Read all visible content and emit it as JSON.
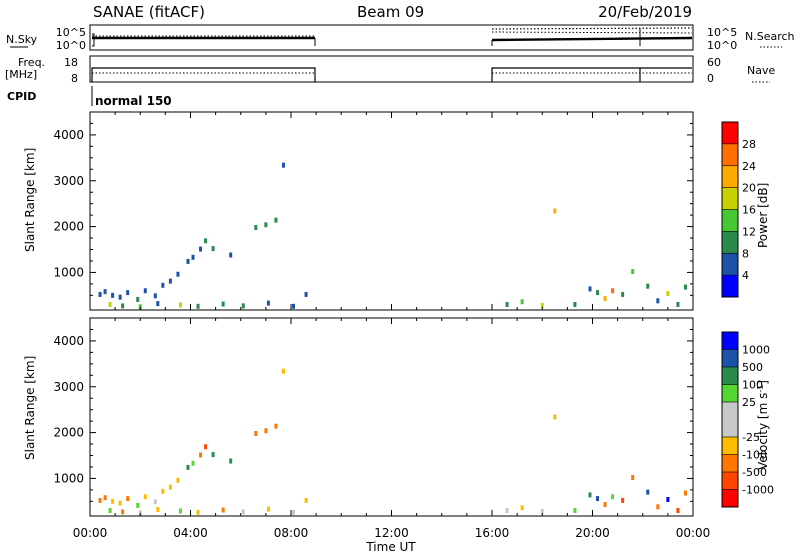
{
  "header": {
    "station": "SANAE (fitACF)",
    "beam": "Beam 09",
    "date": "20/Feb/2019"
  },
  "top_panels": {
    "nsky_label": "N.Sky",
    "nsky_ticks": [
      "10^5",
      "10^0"
    ],
    "nsearch_label": "N.Search",
    "nsearch_ticks": [
      "10^5",
      "10^0"
    ],
    "freq_label": "Freq.",
    "freq_unit": "[MHz]",
    "freq_ticks": [
      "18",
      "8"
    ],
    "nave_label": "Nave",
    "nave_ticks": [
      "60",
      "0"
    ],
    "cpid_label": "CPID",
    "cpid_text": "normal 150",
    "active_intervals_hours": [
      [
        0,
        9
      ],
      [
        16,
        24
      ]
    ],
    "cpid_change_hours": [
      0,
      9,
      16,
      21.8
    ]
  },
  "colors": {
    "power": [
      "#0000ff",
      "#1b53a9",
      "#2a8a4e",
      "#46c832",
      "#c8d200",
      "#ffaa00",
      "#ff7000",
      "#ff0000"
    ],
    "velocity": [
      "#ff0000",
      "#ff4400",
      "#ff7700",
      "#ffbb00",
      "#c8c8c8",
      "#c8c8c8",
      "#55d633",
      "#2a8a4e",
      "#1b53a9",
      "#0000ff"
    ]
  },
  "chart_data": [
    {
      "type": "scatter",
      "title": "",
      "xlabel": "Time UT",
      "ylabel": "Slant Range [km]",
      "xlim": [
        0,
        24
      ],
      "ylim": [
        180,
        4500
      ],
      "x_ticks": [
        "00:00",
        "04:00",
        "08:00",
        "12:00",
        "16:00",
        "20:00",
        "00:00"
      ],
      "y_ticks": [
        "1000",
        "2000",
        "3000",
        "4000"
      ],
      "colorbar": {
        "label": "Power [dB]",
        "ticks": [
          "4",
          "8",
          "12",
          "16",
          "20",
          "24",
          "28"
        ],
        "range": [
          0,
          32
        ]
      },
      "series": [
        {
          "points": [
            [
              0.4,
              520,
              6
            ],
            [
              0.6,
              580,
              6
            ],
            [
              0.9,
              500,
              5
            ],
            [
              1.2,
              460,
              7
            ],
            [
              1.5,
              560,
              6
            ],
            [
              1.9,
              410,
              9
            ],
            [
              2.2,
              600,
              7
            ],
            [
              2.6,
              490,
              5
            ],
            [
              2.9,
              720,
              6
            ],
            [
              3.2,
              810,
              7
            ],
            [
              3.5,
              960,
              5
            ],
            [
              3.9,
              1240,
              6
            ],
            [
              4.1,
              1330,
              5
            ],
            [
              4.4,
              1510,
              6
            ],
            [
              4.6,
              1690,
              11
            ],
            [
              4.9,
              1520,
              10
            ],
            [
              5.6,
              1380,
              6
            ],
            [
              6.6,
              1980,
              9
            ],
            [
              7.0,
              2040,
              10
            ],
            [
              7.4,
              2140,
              11
            ],
            [
              7.7,
              3340,
              6
            ],
            [
              0.8,
              300,
              19
            ],
            [
              1.3,
              270,
              9
            ],
            [
              2.0,
              250,
              12
            ],
            [
              2.7,
              320,
              6
            ],
            [
              3.6,
              290,
              17
            ],
            [
              4.3,
              260,
              8
            ],
            [
              5.3,
              310,
              10
            ],
            [
              6.1,
              270,
              9
            ],
            [
              7.1,
              330,
              6
            ],
            [
              8.1,
              260,
              7
            ],
            [
              8.6,
              520,
              5
            ],
            [
              16.6,
              300,
              10
            ],
            [
              17.2,
              360,
              14
            ],
            [
              18.0,
              280,
              19
            ],
            [
              18.5,
              2340,
              21
            ],
            [
              19.3,
              300,
              9
            ],
            [
              19.9,
              640,
              7
            ],
            [
              20.2,
              560,
              9
            ],
            [
              20.5,
              430,
              20
            ],
            [
              20.8,
              600,
              24
            ],
            [
              21.2,
              520,
              10
            ],
            [
              21.6,
              1020,
              14
            ],
            [
              22.2,
              700,
              8
            ],
            [
              22.6,
              380,
              6
            ],
            [
              23.0,
              540,
              18
            ],
            [
              23.4,
              300,
              11
            ],
            [
              23.7,
              680,
              9
            ]
          ]
        }
      ]
    },
    {
      "type": "scatter",
      "title": "",
      "xlabel": "Time UT",
      "ylabel": "Slant Range [km]",
      "xlim": [
        0,
        24
      ],
      "ylim": [
        180,
        4500
      ],
      "x_ticks": [
        "00:00",
        "04:00",
        "08:00",
        "12:00",
        "16:00",
        "20:00",
        "00:00"
      ],
      "y_ticks": [
        "1000",
        "2000",
        "3000",
        "4000"
      ],
      "colorbar": {
        "label": "Velocity [m s^-1]",
        "ticks": [
          "1000",
          "500",
          "100",
          "25",
          "-25",
          "-100",
          "-500",
          "-1000"
        ],
        "levels": [
          -1500,
          -1000,
          -500,
          -100,
          -25,
          0,
          25,
          100,
          500,
          1000,
          1500
        ]
      },
      "series": [
        {
          "points": [
            [
              0.4,
              520,
              -300
            ],
            [
              0.6,
              580,
              -150
            ],
            [
              0.9,
              500,
              -60
            ],
            [
              1.2,
              460,
              -80
            ],
            [
              1.5,
              560,
              -200
            ],
            [
              1.9,
              410,
              60
            ],
            [
              2.2,
              600,
              -90
            ],
            [
              2.6,
              490,
              20
            ],
            [
              2.9,
              720,
              -40
            ],
            [
              3.2,
              810,
              -70
            ],
            [
              3.5,
              960,
              -60
            ],
            [
              3.9,
              1240,
              300
            ],
            [
              4.1,
              1330,
              60
            ],
            [
              4.4,
              1510,
              -300
            ],
            [
              4.6,
              1690,
              -700
            ],
            [
              4.9,
              1520,
              150
            ],
            [
              5.6,
              1380,
              200
            ],
            [
              6.6,
              1980,
              -300
            ],
            [
              7.0,
              2040,
              -500
            ],
            [
              7.4,
              2140,
              -400
            ],
            [
              7.7,
              3340,
              -50
            ],
            [
              0.8,
              300,
              40
            ],
            [
              1.3,
              270,
              -120
            ],
            [
              2.0,
              250,
              10
            ],
            [
              2.7,
              320,
              -60
            ],
            [
              3.6,
              290,
              80
            ],
            [
              4.3,
              260,
              -30
            ],
            [
              5.3,
              310,
              -200
            ],
            [
              6.1,
              270,
              20
            ],
            [
              7.1,
              330,
              -90
            ],
            [
              8.1,
              260,
              10
            ],
            [
              8.6,
              520,
              -50
            ],
            [
              16.6,
              300,
              5
            ],
            [
              17.2,
              360,
              -40
            ],
            [
              18.0,
              280,
              15
            ],
            [
              18.5,
              2340,
              -80
            ],
            [
              19.3,
              300,
              30
            ],
            [
              19.9,
              640,
              200
            ],
            [
              20.2,
              560,
              700
            ],
            [
              20.5,
              430,
              -300
            ],
            [
              20.8,
              600,
              80
            ],
            [
              21.2,
              520,
              -900
            ],
            [
              21.6,
              1020,
              -500
            ],
            [
              22.2,
              700,
              600
            ],
            [
              22.6,
              380,
              -120
            ],
            [
              23.0,
              540,
              1200
            ],
            [
              23.4,
              300,
              -700
            ],
            [
              23.7,
              680,
              -350
            ]
          ]
        }
      ]
    }
  ]
}
